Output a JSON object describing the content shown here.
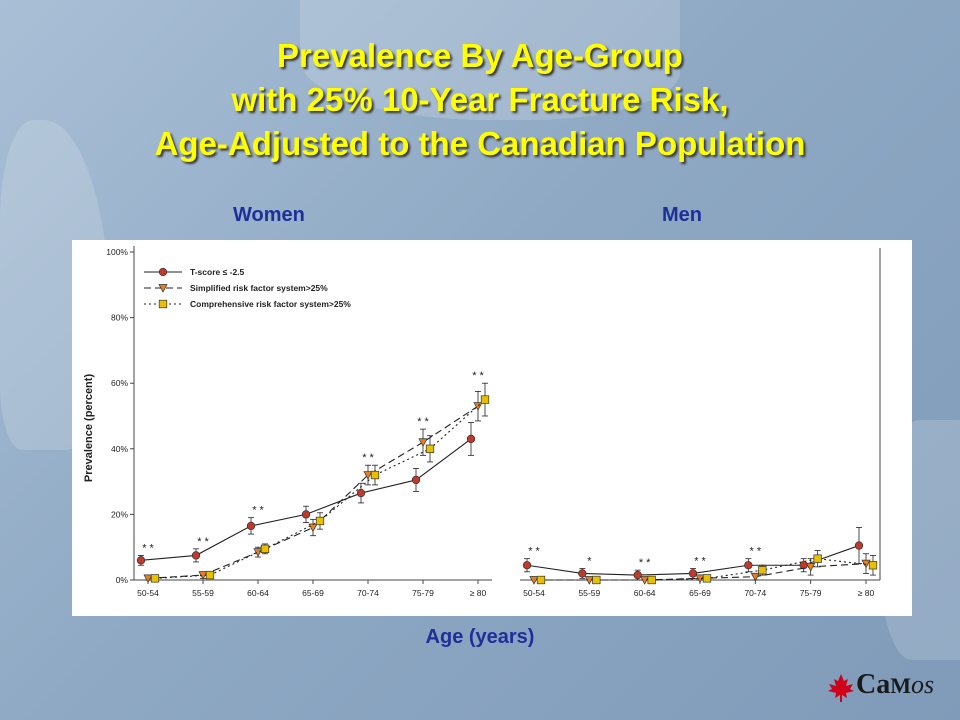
{
  "title_lines": [
    "Prevalence By Age-Group",
    "with 25% 10-Year Fracture Risk,",
    "Age-Adjusted to the Canadian Population"
  ],
  "panel_labels": {
    "women": "Women",
    "men": "Men"
  },
  "xlabel": "Age (years)",
  "logo": {
    "a": "Ca",
    "b": "M",
    "c": "os"
  },
  "chart_data": [
    {
      "type": "line",
      "panel": "Women",
      "categories": [
        "50-54",
        "55-59",
        "60-64",
        "65-69",
        "70-74",
        "75-79",
        "≥ 80"
      ],
      "ylabel": "Prevalence (percent)",
      "yticks": [
        "0%",
        "20%",
        "40%",
        "60%",
        "80%",
        "100%"
      ],
      "ylim": [
        0,
        100
      ],
      "grid": false,
      "legend_position": "top-left",
      "series": [
        {
          "name": "T-score ≤ -2.5",
          "marker": "circle",
          "color": "#c0392b",
          "dash": "solid",
          "values": [
            6,
            7.5,
            16.5,
            20,
            26.5,
            30.5,
            43
          ],
          "err": [
            1.5,
            2,
            2.5,
            2.5,
            3,
            3.5,
            5
          ]
        },
        {
          "name": "Simplified risk factor system>25%",
          "marker": "triangle",
          "color": "#e67e22",
          "dash": "dashed",
          "values": [
            0.5,
            1.5,
            8.5,
            16,
            32,
            42,
            53
          ],
          "err": [
            0.5,
            1,
            1.5,
            2.5,
            3,
            4,
            4.5
          ]
        },
        {
          "name": "Comprehensive risk factor system>25%",
          "marker": "square",
          "color": "#e8c000",
          "dash": "dotted",
          "values": [
            0.5,
            1.5,
            9.5,
            18,
            32,
            40,
            55
          ],
          "err": [
            0.5,
            1,
            1.5,
            2.5,
            3,
            4,
            5
          ]
        }
      ],
      "annotations": [
        "* *",
        "* *",
        "* *",
        "",
        "* *",
        "* *",
        "* *"
      ]
    },
    {
      "type": "line",
      "panel": "Men",
      "categories": [
        "50-54",
        "55-59",
        "60-64",
        "65-69",
        "70-74",
        "75-79",
        "≥ 80"
      ],
      "ylim": [
        0,
        100
      ],
      "grid": false,
      "series": [
        {
          "name": "T-score ≤ -2.5",
          "marker": "circle",
          "color": "#c0392b",
          "dash": "solid",
          "values": [
            4.5,
            2,
            1.5,
            2,
            4.5,
            4.5,
            10.5
          ],
          "err": [
            2,
            1.5,
            1.5,
            1.5,
            2,
            2,
            5.5
          ]
        },
        {
          "name": "Simplified risk factor system>25%",
          "marker": "triangle",
          "color": "#e67e22",
          "dash": "dashed",
          "values": [
            0,
            0,
            0,
            0.5,
            1,
            4,
            5
          ],
          "err": [
            0,
            0,
            0,
            0.5,
            1,
            2.5,
            3
          ]
        },
        {
          "name": "Comprehensive risk factor system>25%",
          "marker": "square",
          "color": "#e8c000",
          "dash": "dotted",
          "values": [
            0,
            0,
            0,
            0.5,
            3,
            6.5,
            4.5
          ],
          "err": [
            0,
            0,
            0,
            0.5,
            1.5,
            2.5,
            3
          ]
        }
      ],
      "annotations": [
        "* *",
        "*",
        "* *",
        "* *",
        "* *",
        "",
        ""
      ]
    }
  ]
}
